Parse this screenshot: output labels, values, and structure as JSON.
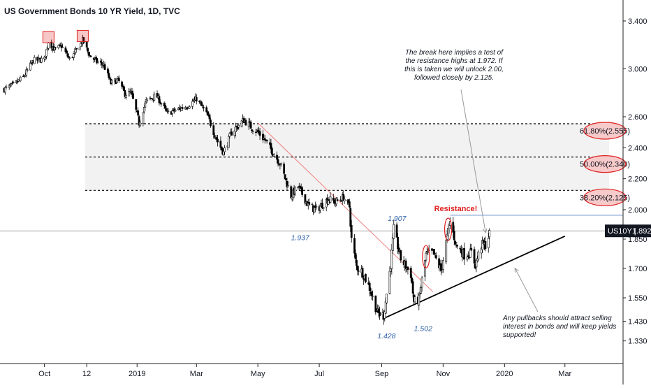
{
  "title": "US Government Bonds 10 YR Yield, 1D, TVC",
  "chart_data": {
    "type": "candlestick",
    "title": "US Government Bonds 10 YR Yield, 1D, TVC",
    "ylim": [
      1.33,
      3.5
    ],
    "y_ticks": [
      3.4,
      3.0,
      2.6,
      2.4,
      2.2,
      2.0,
      1.85,
      1.7,
      1.55,
      1.43,
      1.33
    ],
    "y_tick_labels": [
      "3.400",
      "3.000",
      "2.600",
      "2.400",
      "2.200",
      "2.000",
      "1.850",
      "1.700",
      "1.550",
      "1.430",
      "1.330"
    ],
    "x_range": [
      "2018-08-22",
      "2020-03-31"
    ],
    "x_ticks": [
      {
        "date": "2018-10-01",
        "label": "Oct"
      },
      {
        "date": "2018-11-12",
        "label": "12"
      },
      {
        "date": "2019-01-01",
        "label": "2019"
      },
      {
        "date": "2019-03-01",
        "label": "Mar"
      },
      {
        "date": "2019-05-01",
        "label": "May"
      },
      {
        "date": "2019-07-01",
        "label": "Jul"
      },
      {
        "date": "2019-09-01",
        "label": "Sep"
      },
      {
        "date": "2019-11-01",
        "label": "Nov"
      },
      {
        "date": "2020-01-01",
        "label": "2020"
      },
      {
        "date": "2020-03-01",
        "label": "Mar"
      }
    ],
    "price_path": [
      [
        "2018-08-22",
        2.83
      ],
      [
        "2018-08-30",
        2.86
      ],
      [
        "2018-09-10",
        2.93
      ],
      [
        "2018-09-20",
        3.07
      ],
      [
        "2018-10-01",
        3.08
      ],
      [
        "2018-10-05",
        3.23
      ],
      [
        "2018-10-11",
        3.16
      ],
      [
        "2018-10-18",
        3.19
      ],
      [
        "2018-10-26",
        3.08
      ],
      [
        "2018-11-01",
        3.14
      ],
      [
        "2018-11-08",
        3.24
      ],
      [
        "2018-11-15",
        3.11
      ],
      [
        "2018-11-22",
        3.06
      ],
      [
        "2018-11-29",
        3.03
      ],
      [
        "2018-12-06",
        2.88
      ],
      [
        "2018-12-13",
        2.91
      ],
      [
        "2018-12-20",
        2.79
      ],
      [
        "2018-12-26",
        2.8
      ],
      [
        "2019-01-03",
        2.56
      ],
      [
        "2019-01-10",
        2.73
      ],
      [
        "2019-01-20",
        2.78
      ],
      [
        "2019-01-31",
        2.63
      ],
      [
        "2019-02-10",
        2.66
      ],
      [
        "2019-02-20",
        2.69
      ],
      [
        "2019-03-01",
        2.75
      ],
      [
        "2019-03-10",
        2.64
      ],
      [
        "2019-03-22",
        2.44
      ],
      [
        "2019-03-28",
        2.37
      ],
      [
        "2019-04-05",
        2.5
      ],
      [
        "2019-04-17",
        2.58
      ],
      [
        "2019-04-25",
        2.53
      ],
      [
        "2019-05-01",
        2.5
      ],
      [
        "2019-05-08",
        2.45
      ],
      [
        "2019-05-15",
        2.38
      ],
      [
        "2019-05-23",
        2.3
      ],
      [
        "2019-06-03",
        2.09
      ],
      [
        "2019-06-10",
        2.15
      ],
      [
        "2019-06-20",
        2.03
      ],
      [
        "2019-06-28",
        2.0
      ],
      [
        "2019-07-05",
        2.04
      ],
      [
        "2019-07-10",
        2.07
      ],
      [
        "2019-07-17",
        2.05
      ],
      [
        "2019-07-25",
        2.08
      ],
      [
        "2019-07-31",
        2.02
      ],
      [
        "2019-08-02",
        1.85
      ],
      [
        "2019-08-07",
        1.71
      ],
      [
        "2019-08-13",
        1.68
      ],
      [
        "2019-08-20",
        1.6
      ],
      [
        "2019-08-28",
        1.47
      ],
      [
        "2019-09-03",
        1.46
      ],
      [
        "2019-09-10",
        1.72
      ],
      [
        "2019-09-13",
        1.9
      ],
      [
        "2019-09-20",
        1.75
      ],
      [
        "2019-09-30",
        1.67
      ],
      [
        "2019-10-03",
        1.53
      ],
      [
        "2019-10-08",
        1.54
      ],
      [
        "2019-10-15",
        1.77
      ],
      [
        "2019-10-22",
        1.78
      ],
      [
        "2019-10-30",
        1.69
      ],
      [
        "2019-11-05",
        1.86
      ],
      [
        "2019-11-08",
        1.94
      ],
      [
        "2019-11-14",
        1.82
      ],
      [
        "2019-11-22",
        1.77
      ],
      [
        "2019-11-29",
        1.78
      ],
      [
        "2019-12-03",
        1.72
      ],
      [
        "2019-12-09",
        1.82
      ],
      [
        "2019-12-13",
        1.82
      ],
      [
        "2019-12-18",
        1.89
      ]
    ],
    "current_value": 1.892,
    "current_label": "US10Y",
    "current_value_label": "1.892",
    "fib_levels": [
      {
        "value": 2.555,
        "label": "61.80%(2.555)"
      },
      {
        "value": 2.34,
        "label": "50.00%(2.340)"
      },
      {
        "value": 2.125,
        "label": "38.20%(2.125)"
      }
    ],
    "fib_zone_start": "2018-08-22",
    "resistance_level": 1.972,
    "resistance_label": "Resistance!",
    "point_labels": [
      {
        "date": "2019-06-12",
        "value": 1.937,
        "text": "1.937"
      },
      {
        "date": "2019-09-12",
        "value": 1.907,
        "text": "1.907"
      },
      {
        "date": "2019-09-03",
        "value": 1.428,
        "text": "1.428"
      },
      {
        "date": "2019-10-08",
        "value": 1.502,
        "text": "1.502"
      }
    ],
    "trendlines": [
      {
        "style": "red-thin",
        "from": [
          "2019-05-01",
          2.56
        ],
        "to": [
          "2019-10-22",
          1.58
        ]
      },
      {
        "style": "black-thick",
        "from": [
          "2019-09-03",
          1.445
        ],
        "to": [
          "2020-03-01",
          1.865
        ]
      }
    ],
    "highlight_boxes": [
      {
        "date": "2018-10-05",
        "value": 3.23
      },
      {
        "date": "2018-11-08",
        "value": 3.24
      }
    ],
    "highlight_ellipses": [
      {
        "date": "2019-10-15",
        "value": 1.76
      },
      {
        "date": "2019-11-06",
        "value": 1.9
      }
    ],
    "annotations": [
      {
        "id": "break",
        "lines": [
          "The break here implies a test of",
          "the resistance highs at 1.972. If",
          "this is taken we will unlock 2.00,",
          "followed closely by 2.125."
        ],
        "arrow_to": [
          "2019-12-16",
          1.89
        ]
      },
      {
        "id": "pullbacks",
        "lines": [
          "Any pullbacks should attract selling",
          "interest in bonds and will keep yields",
          "supported!"
        ],
        "arrow_to": [
          "2020-01-10",
          1.73
        ]
      }
    ],
    "colors": {
      "up": "#2b2b2b",
      "down": "#000000",
      "red_accent": "#e02020",
      "label_blue": "#2a5ea8",
      "zone_fill": "#f2f2f2",
      "fib_circle_fill": "#f7caca"
    }
  }
}
